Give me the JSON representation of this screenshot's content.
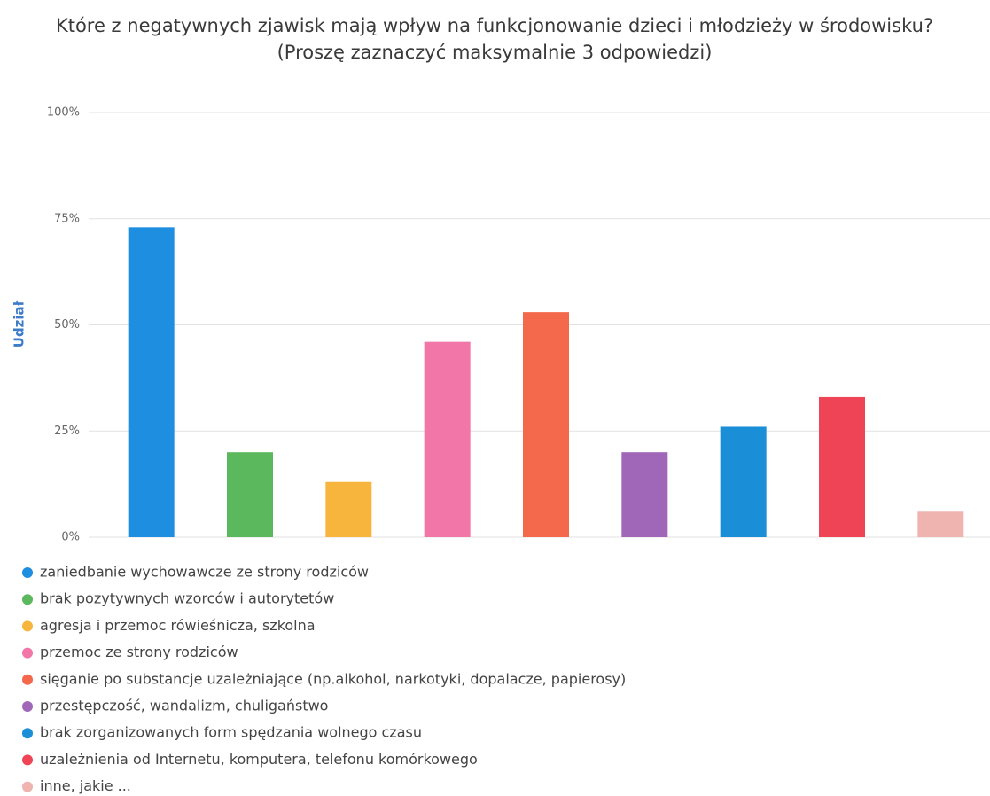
{
  "chart_data": {
    "type": "bar",
    "title": "Które z negatywnych zjawisk mają wpływ na funkcjonowanie dzieci i młodzieży w środowisku? (Proszę zaznaczyć maksymalnie 3 odpowiedzi)",
    "y_label": "Udział",
    "categories": [
      "zaniedbanie wychowawcze ze strony rodziców",
      "brak pozytywnych wzorców i autorytetów",
      "agresja i przemoc rówieśnicza, szkolna",
      "przemoc ze strony rodziców",
      "sięganie po substancje uzależniające (np.alkohol, narkotyki, dopalacze, papierosy)",
      "przestępczość, wandalizm, chuligaństwo",
      "brak zorganizowanych form spędzania wolnego czasu",
      "uzależnienia od Internetu, komputera, telefonu komórkowego",
      "inne, jakie ..."
    ],
    "values": [
      73,
      20,
      13,
      46,
      53,
      20,
      26,
      33,
      6
    ],
    "colors": [
      "#1e8fe0",
      "#5cb85c",
      "#f8b53e",
      "#f277a8",
      "#f4694b",
      "#a066b8",
      "#1a8fd8",
      "#ef4455",
      "#efb4b0"
    ],
    "ylim": [
      0,
      100
    ],
    "yticks": [
      {
        "value": 0,
        "label": "0%"
      },
      {
        "value": 25,
        "label": "25%"
      },
      {
        "value": 50,
        "label": "50%"
      },
      {
        "value": 75,
        "label": "75%"
      },
      {
        "value": 100,
        "label": "100%"
      }
    ],
    "grid": true
  }
}
